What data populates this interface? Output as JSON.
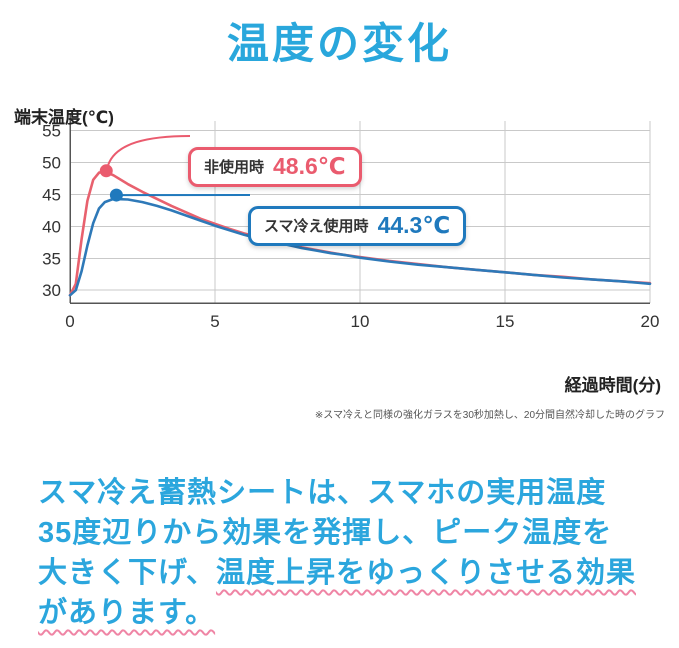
{
  "title": "温度の変化",
  "chart_data": {
    "type": "line",
    "title": "温度の変化",
    "xlabel": "経過時間(分)",
    "ylabel": "端末温度(℃)",
    "xlim": [
      0,
      20
    ],
    "ylim": [
      28,
      56.5
    ],
    "x_ticks": [
      0,
      5,
      10,
      15,
      20
    ],
    "y_ticks": [
      30,
      35,
      40,
      45,
      50,
      55
    ],
    "grid": true,
    "series": [
      {
        "name": "非使用時",
        "color": "#e8616e",
        "peak": 48.6,
        "points": [
          [
            0,
            29.2
          ],
          [
            0.2,
            31
          ],
          [
            0.4,
            38
          ],
          [
            0.6,
            44
          ],
          [
            0.8,
            47.3
          ],
          [
            1.0,
            48.4
          ],
          [
            1.2,
            48.6
          ],
          [
            1.5,
            48.0
          ],
          [
            2,
            46.6
          ],
          [
            2.5,
            45.4
          ],
          [
            3,
            44.3
          ],
          [
            3.5,
            43.2
          ],
          [
            4,
            42.2
          ],
          [
            4.5,
            41.2
          ],
          [
            5,
            40.4
          ],
          [
            5.5,
            39.6
          ],
          [
            6,
            38.9
          ],
          [
            6.5,
            38.3
          ],
          [
            7,
            37.7
          ],
          [
            7.5,
            37.2
          ],
          [
            8,
            36.7
          ],
          [
            8.5,
            36.3
          ],
          [
            9,
            35.9
          ],
          [
            9.5,
            35.5
          ],
          [
            10,
            35.2
          ],
          [
            11,
            34.6
          ],
          [
            12,
            34.1
          ],
          [
            13,
            33.6
          ],
          [
            14,
            33.2
          ],
          [
            15,
            32.8
          ],
          [
            16,
            32.4
          ],
          [
            17,
            32.1
          ],
          [
            18,
            31.7
          ],
          [
            19,
            31.4
          ],
          [
            20,
            31.1
          ]
        ]
      },
      {
        "name": "スマ冷え使用時",
        "color": "#2e79b8",
        "peak": 44.3,
        "points": [
          [
            0,
            29.2
          ],
          [
            0.2,
            30
          ],
          [
            0.4,
            33
          ],
          [
            0.6,
            37
          ],
          [
            0.8,
            40.5
          ],
          [
            1.0,
            42.8
          ],
          [
            1.2,
            43.8
          ],
          [
            1.5,
            44.3
          ],
          [
            2,
            44.2
          ],
          [
            2.5,
            43.8
          ],
          [
            3,
            43.2
          ],
          [
            3.5,
            42.5
          ],
          [
            4,
            41.7
          ],
          [
            4.5,
            40.9
          ],
          [
            5,
            40.1
          ],
          [
            5.5,
            39.4
          ],
          [
            6,
            38.7
          ],
          [
            6.5,
            38.1
          ],
          [
            7,
            37.6
          ],
          [
            7.5,
            37.1
          ],
          [
            8,
            36.6
          ],
          [
            8.5,
            36.2
          ],
          [
            9,
            35.8
          ],
          [
            9.5,
            35.5
          ],
          [
            10,
            35.1
          ],
          [
            11,
            34.5
          ],
          [
            12,
            34.0
          ],
          [
            13,
            33.6
          ],
          [
            14,
            33.2
          ],
          [
            15,
            32.8
          ],
          [
            16,
            32.4
          ],
          [
            17,
            32.0
          ],
          [
            18,
            31.7
          ],
          [
            19,
            31.4
          ],
          [
            20,
            31.0
          ]
        ]
      }
    ],
    "annotations": [
      {
        "label": "非使用時",
        "value": "48.6℃",
        "color": "#ea5b6e",
        "marker": {
          "x": 1.25,
          "y": 48.7
        }
      },
      {
        "label": "スマ冷え使用時",
        "value": "44.3℃",
        "color": "#1f79bd",
        "marker": {
          "x": 1.6,
          "y": 44.9
        }
      }
    ],
    "footnote": "※スマ冷えと同様の強化ガラスを30秒加熱し、20分間自然冷却した時のグラフ"
  },
  "body": {
    "line1": "スマ冷え蓄熱シートは、スマホの実用温度",
    "line2": "35度辺りから効果を発揮し、ピーク温度を",
    "line3_normal": "大きく下げ、",
    "line3_emphasis": "温度上昇をゆっくりさせる効果",
    "line4_emphasis": "があります。"
  }
}
